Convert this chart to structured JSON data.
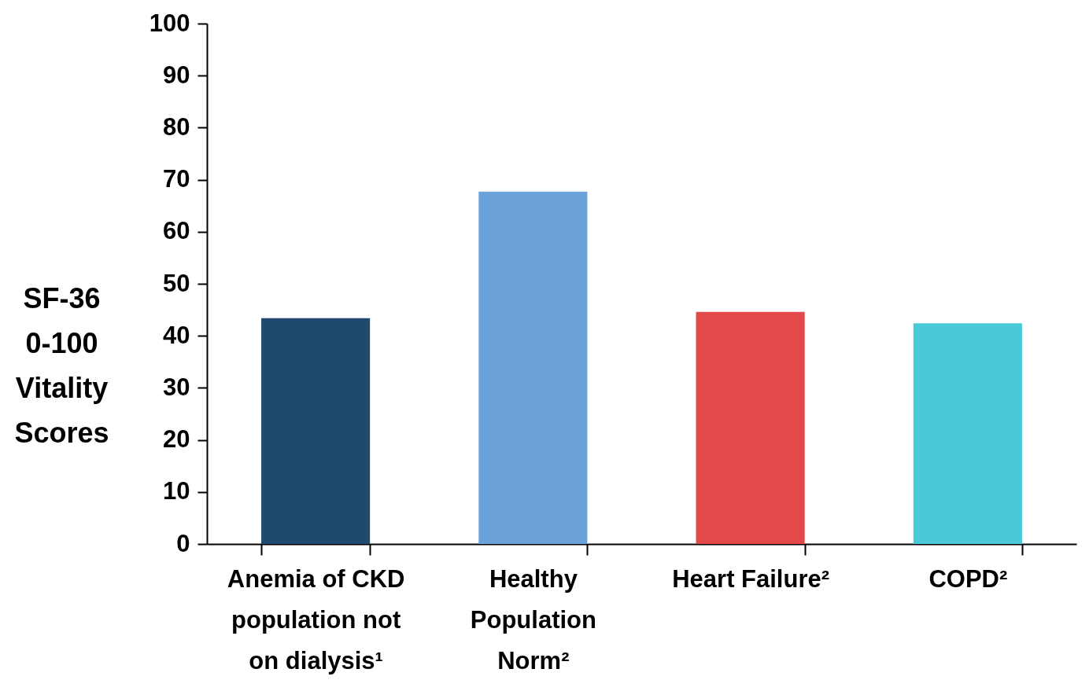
{
  "chart_data": {
    "type": "bar",
    "ylabel": "SF-36 0-100 Vitality Scores",
    "categories": [
      "Anemia of CKD population not on dialysis¹",
      "Healthy Population Norm²",
      "Heart Failure²",
      "COPD²"
    ],
    "values": [
      43.4,
      67.7,
      44.6,
      42.4
    ],
    "colors": [
      "#1f4a6e",
      "#6ca2da",
      "#e2494b",
      "#4ac9d8"
    ],
    "ylim": [
      0,
      100
    ],
    "yticks": [
      0,
      10,
      20,
      30,
      40,
      50,
      60,
      70,
      80,
      90,
      100
    ],
    "grid": false
  }
}
